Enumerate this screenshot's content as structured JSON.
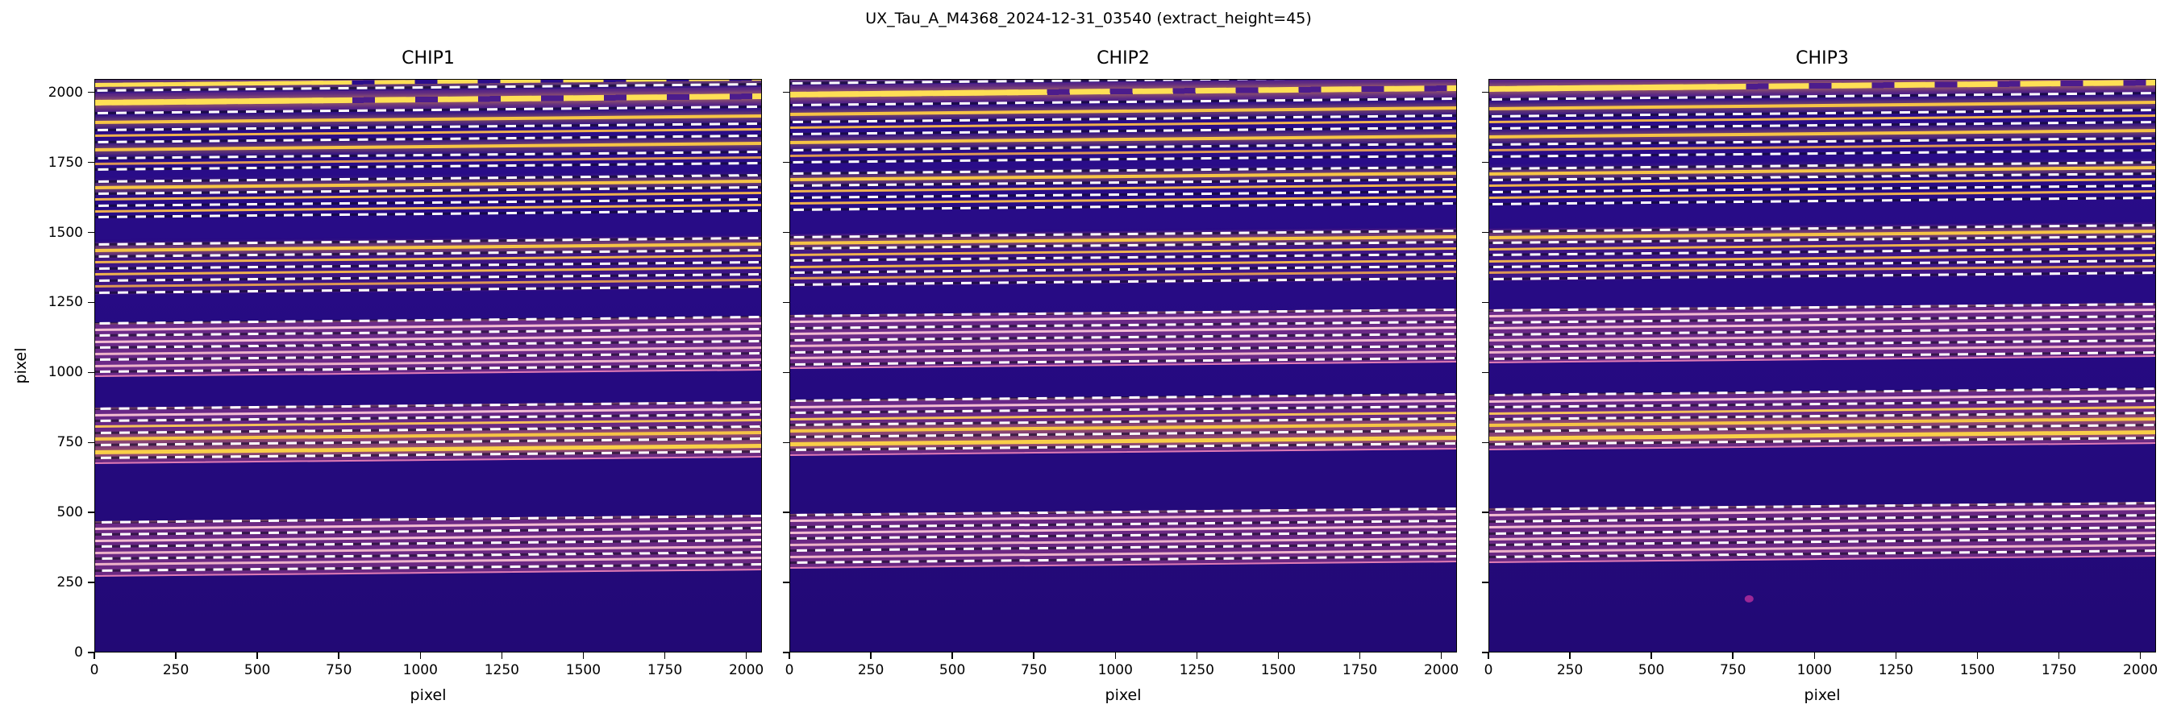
{
  "chart_data": {
    "type": "heatmap",
    "title": "UX_Tau_A_M4368_2024-12-31_03540  (extract_height=45)",
    "extract_height": 45,
    "axes": {
      "xlabel": "pixel",
      "ylabel": "pixel",
      "xlim": [
        0,
        2048
      ],
      "ylim": [
        0,
        2048
      ],
      "xticks": [
        0,
        250,
        500,
        750,
        1000,
        1250,
        1500,
        1750,
        2000
      ],
      "yticks": [
        0,
        250,
        500,
        750,
        1000,
        1250,
        1500,
        1750,
        2000
      ]
    },
    "panels": [
      {
        "title": "CHIP1",
        "y_offset": 0
      },
      {
        "title": "CHIP2",
        "y_offset": 28
      },
      {
        "title": "CHIP3",
        "y_offset": 48,
        "blemish": {
          "x": 790,
          "y": 150
        }
      }
    ],
    "shared": {
      "tilt_deg": -0.55,
      "colors": {
        "background": "#250a80",
        "region_rgb": "195,80,145",
        "region_edge": "rgba(243,138,190,0.85)",
        "dash": "#ffffff"
      },
      "glow_regions": [
        {
          "y0": 1945,
          "y1": 2012,
          "a": 0.22
        },
        {
          "y0": 1292,
          "y1": 1478,
          "a": 0.15
        },
        {
          "y0": 1010,
          "y1": 1192,
          "a": 0.45
        },
        {
          "y0": 700,
          "y1": 888,
          "a": 0.42
        },
        {
          "y0": 296,
          "y1": 482,
          "a": 0.45
        }
      ],
      "dashed_lines_y": [
        2020,
        1940,
        1880,
        1838,
        1780,
        1738,
        1695,
        1653,
        1610,
        1568,
        1470,
        1428,
        1385,
        1343,
        1300,
        1188,
        1145,
        1102,
        1059,
        1016,
        884,
        841,
        798,
        755,
        710,
        478,
        435,
        392,
        349,
        306
      ],
      "traces": [
        {
          "y": 2042,
          "h": 5,
          "c": "#ffdf55",
          "glow": 1,
          "broken": 1
        },
        {
          "y": 1977,
          "h": 7,
          "c": "#ffdf55",
          "glow": 1,
          "broken": 1
        },
        {
          "y": 1908,
          "h": 4,
          "c": "#f6c445",
          "glow": 1
        },
        {
          "y": 1860,
          "h": 3,
          "c": "#efb14e"
        },
        {
          "y": 1808,
          "h": 4,
          "c": "#f6c445",
          "glow": 1
        },
        {
          "y": 1760,
          "h": 3,
          "c": "#dd9754"
        },
        {
          "y": 1674,
          "h": 4,
          "c": "#f6c445",
          "glow": 1
        },
        {
          "y": 1632,
          "h": 3,
          "c": "#efb14e"
        },
        {
          "y": 1589,
          "h": 3,
          "c": "#efb14e"
        },
        {
          "y": 1449,
          "h": 4,
          "c": "#f6c445",
          "glow": 1
        },
        {
          "y": 1407,
          "h": 3,
          "c": "#efb14e"
        },
        {
          "y": 1364,
          "h": 3,
          "c": "#efb14e"
        },
        {
          "y": 1322,
          "h": 3,
          "c": "#dd9754"
        },
        {
          "y": 1166,
          "h": 3,
          "c": "#f3bcd2"
        },
        {
          "y": 1123,
          "h": 3,
          "c": "#f3bcd2"
        },
        {
          "y": 1080,
          "h": 3,
          "c": "#edb2c9"
        },
        {
          "y": 1037,
          "h": 3,
          "c": "#edb2c9"
        },
        {
          "y": 862,
          "h": 3,
          "c": "#f3bcd2"
        },
        {
          "y": 820,
          "h": 3,
          "c": "#f5c05a"
        },
        {
          "y": 777,
          "h": 4,
          "c": "#f6c445",
          "glow": 1
        },
        {
          "y": 730,
          "h": 5,
          "c": "#f9cf48",
          "glow": 1
        },
        {
          "y": 456,
          "h": 3,
          "c": "#f3bcd2"
        },
        {
          "y": 414,
          "h": 3,
          "c": "#f3bcd2"
        },
        {
          "y": 371,
          "h": 3,
          "c": "#edb2c9"
        },
        {
          "y": 328,
          "h": 3,
          "c": "#edb2c9"
        }
      ]
    }
  }
}
